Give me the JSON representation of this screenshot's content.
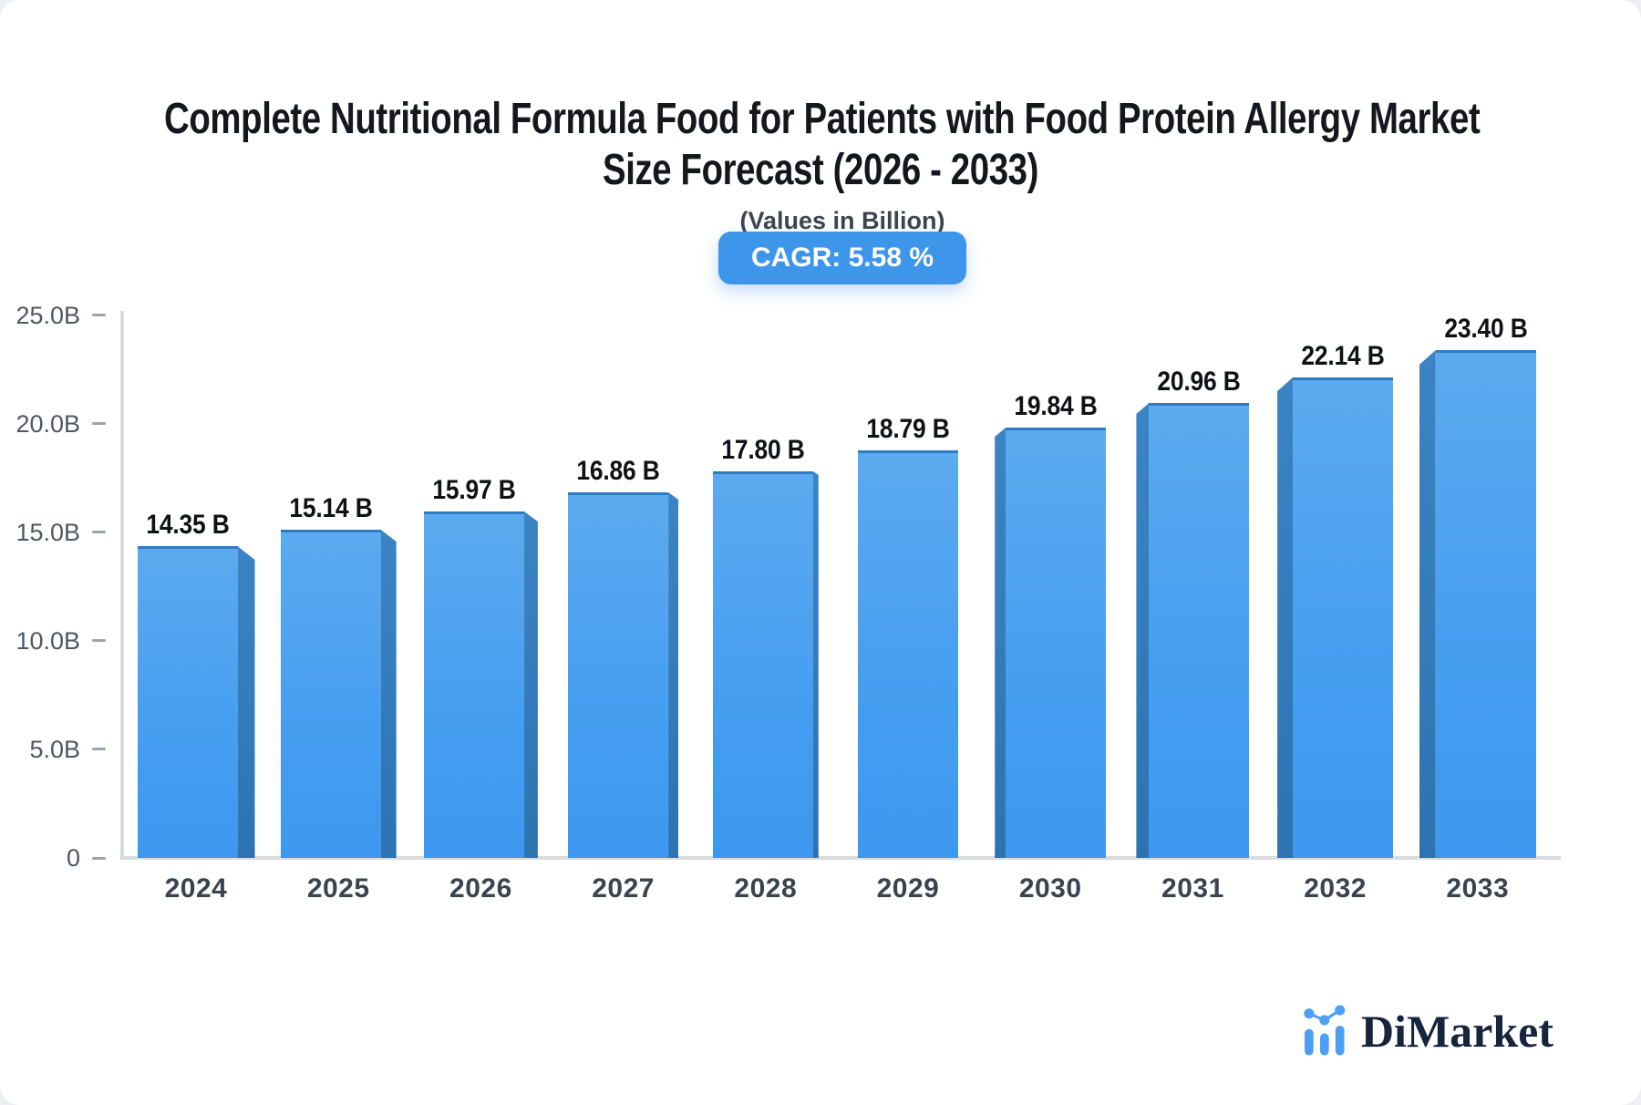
{
  "header": {
    "title_line1": "Complete Nutritional Formula Food for Patients with Food Protein Allergy Market",
    "title_line2": "Size Forecast (2026 - 2033)",
    "subtitle": "(Values in Billion)",
    "cagr_badge": "CAGR: 5.58 %"
  },
  "chart_data": {
    "type": "bar",
    "title": "Complete Nutritional Formula Food for Patients with Food Protein Allergy Market Size Forecast (2026 - 2033)",
    "subtitle": "(Values in Billion)",
    "units": "Billion",
    "cagr": "5.58 %",
    "categories": [
      "2024",
      "2025",
      "2026",
      "2027",
      "2028",
      "2029",
      "2030",
      "2031",
      "2032",
      "2033"
    ],
    "values": [
      14.35,
      15.14,
      15.97,
      16.86,
      17.8,
      18.79,
      19.84,
      20.96,
      22.14,
      23.4
    ],
    "value_labels": [
      "14.35 B",
      "15.14 B",
      "15.97 B",
      "16.86 B",
      "17.80 B",
      "18.79 B",
      "19.84 B",
      "20.96 B",
      "22.14 B",
      "23.40 B"
    ],
    "ylim": [
      0,
      25
    ],
    "yticks": [
      {
        "label": "25.0B",
        "value": 25
      },
      {
        "label": "20.0B",
        "value": 20
      },
      {
        "label": "15.0B",
        "value": 15
      },
      {
        "label": "10.0B",
        "value": 10
      },
      {
        "label": "5.0B",
        "value": 5
      },
      {
        "label": "0",
        "value": 0
      }
    ],
    "grid": false,
    "legend": false,
    "bar_color_front": "#459ef0",
    "bar_color_side": "#2f79b9",
    "axis_color": "#d8dbe0"
  },
  "logo": {
    "text": "DiMarket",
    "icon": "mini-bar-chart-logo-icon"
  }
}
